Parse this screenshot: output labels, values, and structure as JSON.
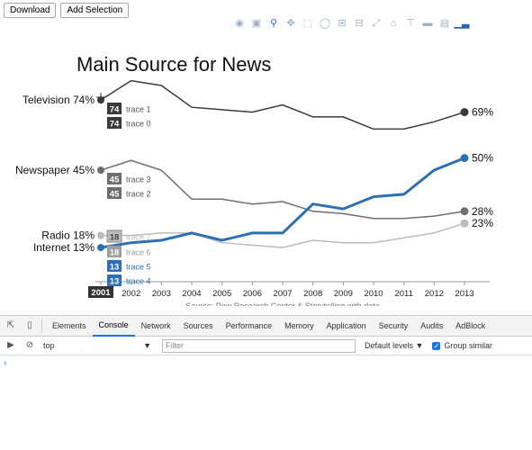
{
  "buttons": {
    "download": "Download",
    "add_selection": "Add Selection"
  },
  "modebar": [
    "camera-icon",
    "save-icon",
    "zoom-icon",
    "pan-icon",
    "box-select-icon",
    "lasso-icon",
    "zoom-in-icon",
    "zoom-out-icon",
    "autoscale-icon",
    "home-icon",
    "spike-lines-icon",
    "hover-closest-icon",
    "hover-compare-icon",
    "plotly-logo-icon"
  ],
  "chart_data": {
    "type": "line",
    "title": "Main Source for News",
    "source": "Source: Pew Research Center & Storytelling with data",
    "x": [
      2001,
      2002,
      2003,
      2004,
      2005,
      2006,
      2007,
      2008,
      2009,
      2010,
      2011,
      2012,
      2013
    ],
    "x_tick_labels": [
      "2001",
      "2002",
      "2003",
      "2004",
      "2005",
      "2006",
      "2007",
      "2008",
      "2009",
      "2010",
      "2011",
      "2012",
      "2013"
    ],
    "ylim": [
      0,
      80
    ],
    "series": [
      {
        "name": "trace 0",
        "color": "#3a3a3a",
        "values": [
          74,
          82,
          80,
          71,
          70,
          69,
          72,
          67,
          67,
          62,
          62,
          65,
          69
        ],
        "start_label": "Television 74%",
        "end_label": "69%",
        "hover_value": "74",
        "emph": false
      },
      {
        "name": "trace 2",
        "color": "#6e6e6e",
        "values": [
          45,
          49,
          45,
          33,
          33,
          31,
          32,
          28,
          27,
          25,
          25,
          26,
          28
        ],
        "start_label": "Newspaper 45%",
        "end_label": "28%",
        "hover_value": "45",
        "emph": false
      },
      {
        "name": "trace 6",
        "color": "#bdbdbd",
        "values": [
          18,
          18,
          19,
          19,
          15,
          14,
          13,
          16,
          15,
          15,
          17,
          19,
          23
        ],
        "start_label": "Radio 18%",
        "end_label": "23%",
        "hover_value": "18",
        "emph": false
      },
      {
        "name": "trace 4",
        "color": "#2f6fb5",
        "values": [
          13,
          15,
          16,
          19,
          16,
          19,
          19,
          31,
          29,
          34,
          35,
          45,
          50
        ],
        "start_label": "Internet 13%",
        "end_label": "50%",
        "hover_value": "13",
        "emph": true
      }
    ],
    "hover_labels": [
      {
        "value": "74",
        "trace": "trace 1"
      },
      {
        "value": "74",
        "trace": "trace 0"
      },
      {
        "value": "45",
        "trace": "trace 3"
      },
      {
        "value": "45",
        "trace": "trace 2"
      },
      {
        "value": "18",
        "trace": "trace 7"
      },
      {
        "value": "18",
        "trace": "trace 6"
      },
      {
        "value": "13",
        "trace": "trace 5"
      },
      {
        "value": "13",
        "trace": "trace 4"
      }
    ],
    "hover_x_label": "2001"
  },
  "devtools": {
    "tabs": [
      "Elements",
      "Console",
      "Network",
      "Sources",
      "Performance",
      "Memory",
      "Application",
      "Security",
      "Audits",
      "AdBlock"
    ],
    "selected_tab": "Console",
    "context": "top",
    "filter_placeholder": "Filter",
    "levels": "Default levels ▼",
    "group_similar": "Group similar",
    "prompt": "›"
  }
}
